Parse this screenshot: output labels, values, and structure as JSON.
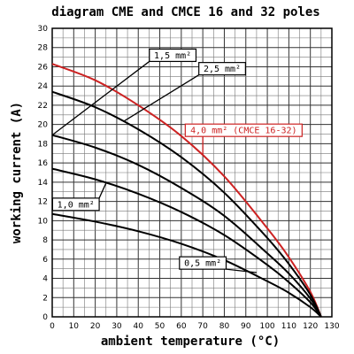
{
  "chart_data": {
    "type": "line",
    "title": "diagram CME and CMCE 16 and 32 poles",
    "xlabel": "ambient temperature (°C)",
    "ylabel": "working current (A)",
    "xlim": [
      0,
      130
    ],
    "ylim": [
      0,
      30
    ],
    "x_ticks": [
      0,
      10,
      20,
      30,
      40,
      50,
      60,
      70,
      80,
      90,
      100,
      110,
      120,
      130
    ],
    "y_ticks": [
      0,
      2,
      4,
      6,
      8,
      10,
      12,
      14,
      16,
      18,
      20,
      22,
      24,
      26,
      28,
      30
    ],
    "grid": true,
    "series": [
      {
        "name": "4,0 mm² (CMCE 16-32)",
        "color": "#cc2222",
        "x": [
          0,
          20,
          40,
          60,
          80,
          100,
          110,
          120,
          125
        ],
        "y": [
          26.3,
          24.6,
          22.0,
          18.8,
          14.6,
          9.2,
          6.2,
          2.6,
          0
        ]
      },
      {
        "name": "2,5 mm²",
        "color": "#000000",
        "x": [
          0,
          20,
          40,
          60,
          80,
          100,
          110,
          120,
          125
        ],
        "y": [
          23.4,
          21.8,
          19.5,
          16.6,
          12.9,
          8.2,
          5.5,
          2.3,
          0
        ]
      },
      {
        "name": "1,5 mm²",
        "color": "#000000",
        "x": [
          0,
          20,
          40,
          60,
          80,
          100,
          110,
          120,
          125
        ],
        "y": [
          18.9,
          17.6,
          15.8,
          13.4,
          10.5,
          6.6,
          4.5,
          1.9,
          0
        ]
      },
      {
        "name": "1,0 mm²",
        "color": "#000000",
        "x": [
          0,
          20,
          40,
          60,
          80,
          100,
          110,
          120,
          125
        ],
        "y": [
          15.4,
          14.3,
          12.8,
          10.9,
          8.5,
          5.4,
          3.6,
          1.5,
          0
        ]
      },
      {
        "name": "0,5 mm²",
        "color": "#000000",
        "x": [
          0,
          20,
          40,
          60,
          80,
          100,
          110,
          120,
          125
        ],
        "y": [
          10.7,
          9.9,
          8.9,
          7.6,
          5.9,
          3.7,
          2.5,
          1.0,
          0
        ]
      }
    ],
    "annotations": [
      {
        "text": "1,5 mm²",
        "series": "1,5 mm²",
        "color": "#000000",
        "label_x": 56,
        "label_y": 27.2,
        "point_x": 0,
        "point_y": 18.9
      },
      {
        "text": "2,5 mm²",
        "series": "2,5 mm²",
        "color": "#000000",
        "label_x": 79,
        "label_y": 25.8,
        "point_x": 33,
        "point_y": 20.3
      },
      {
        "text": "4,0 mm² (CMCE 16-32)",
        "series": "4,0 mm² (CMCE 16-32)",
        "color": "#cc2222",
        "label_x": 89,
        "label_y": 19.4,
        "point_x": 70,
        "point_y": 16.8
      },
      {
        "text": "1,0 mm²",
        "series": "1,0 mm²",
        "color": "#000000",
        "label_x": 11,
        "label_y": 11.7,
        "point_x": 25,
        "point_y": 13.9
      },
      {
        "text": "0,5 mm²",
        "series": "0,5 mm²",
        "color": "#000000",
        "label_x": 70,
        "label_y": 5.6,
        "point_x": 95,
        "point_y": 4.6
      }
    ]
  }
}
